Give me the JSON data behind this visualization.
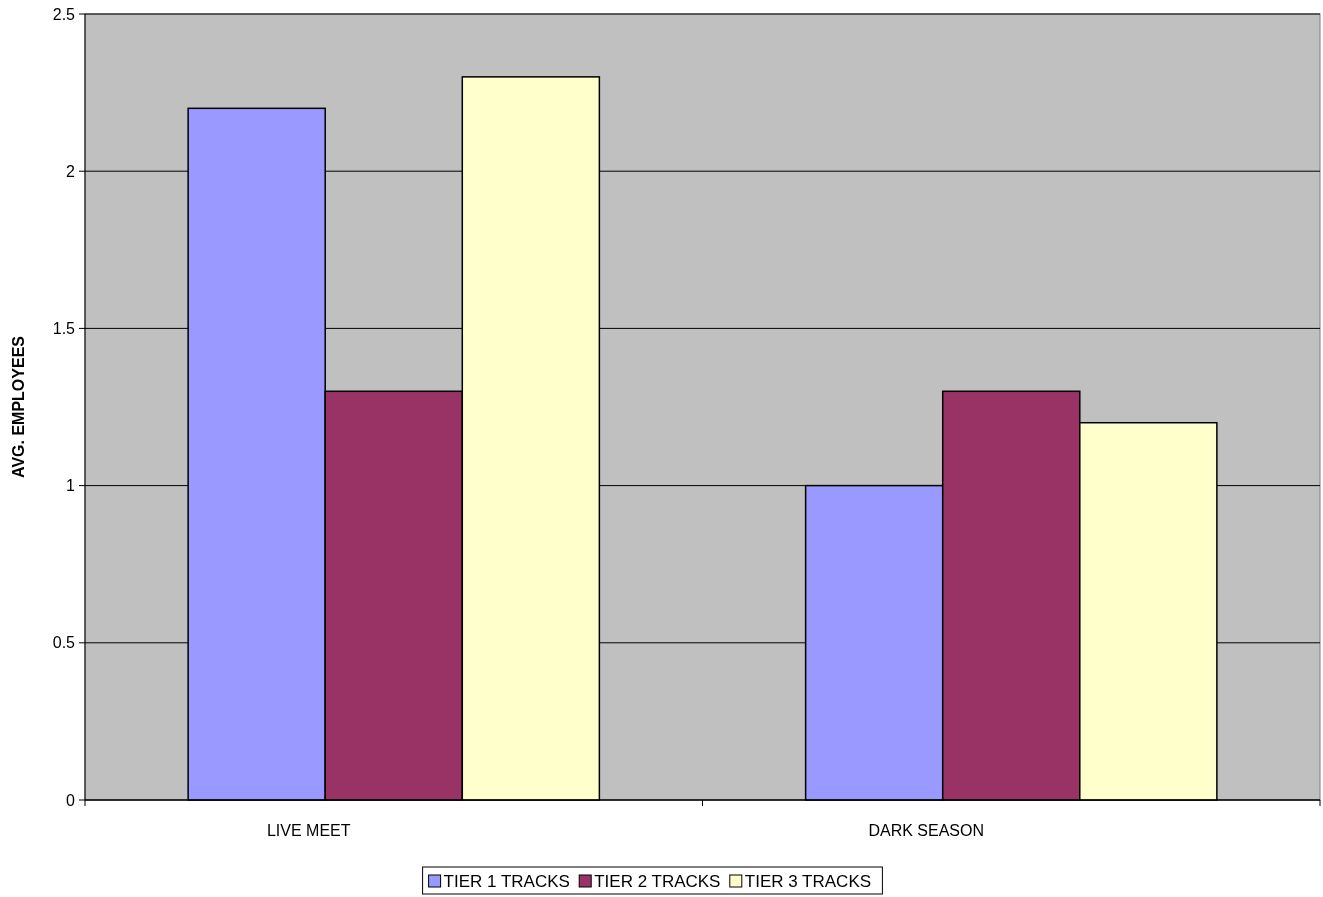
{
  "chart_data": {
    "type": "bar",
    "ylabel": "AVG. EMPLOYEES",
    "categories": [
      "LIVE MEET",
      "DARK SEASON"
    ],
    "series": [
      {
        "name": "TIER 1 TRACKS",
        "color": "#9999ff",
        "values": [
          2.2,
          1.0
        ]
      },
      {
        "name": "TIER 2 TRACKS",
        "color": "#993366",
        "values": [
          1.3,
          1.3
        ]
      },
      {
        "name": "TIER 3 TRACKS",
        "color": "#ffffcc",
        "values": [
          2.3,
          1.2
        ]
      }
    ],
    "ylim": [
      0,
      2.5
    ],
    "yticks": [
      0,
      0.5,
      1,
      1.5,
      2,
      2.5
    ],
    "grid": "y",
    "legend": "bottom"
  }
}
